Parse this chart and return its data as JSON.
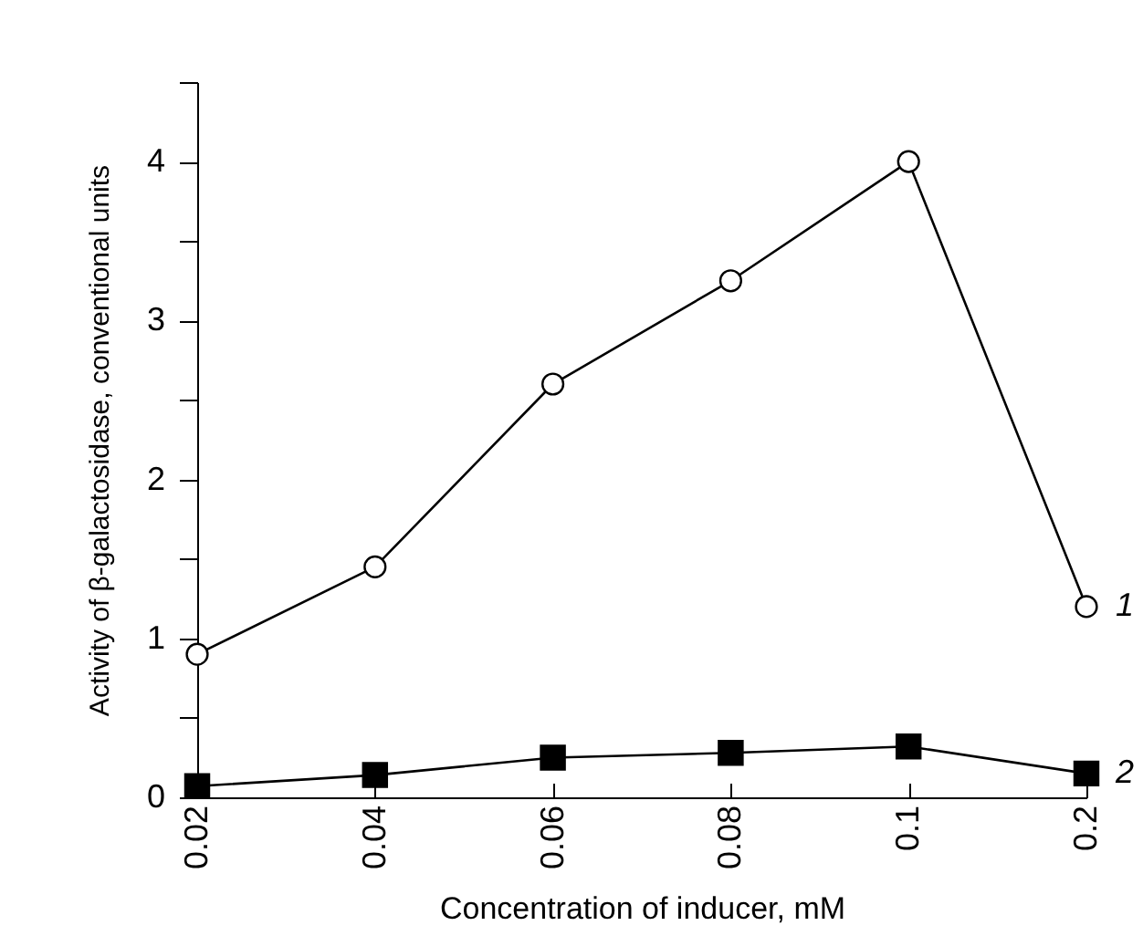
{
  "chart_data": {
    "type": "line",
    "xlabel": "Concentration of inducer, mM",
    "ylabel": "Activity of β-galactosidase, conventional units",
    "categories": [
      "0.02",
      "0.04",
      "0.06",
      "0.08",
      "0.1",
      "0.2"
    ],
    "series": [
      {
        "name": "1",
        "color": "#000000",
        "marker": "circle",
        "values": [
          0.9,
          1.45,
          2.6,
          3.25,
          4.0,
          1.2
        ]
      },
      {
        "name": "2",
        "color": "#000000",
        "marker": "square",
        "values": [
          0.07,
          0.14,
          0.25,
          0.28,
          0.32,
          0.15
        ]
      }
    ],
    "ylim": [
      0,
      4.5
    ],
    "yticks": [
      0,
      {
        "value": 0.5,
        "label": null
      },
      1,
      {
        "value": 1.5,
        "label": null
      },
      2,
      {
        "value": 2.5,
        "label": null
      },
      3,
      {
        "value": 3.5,
        "label": null
      },
      4,
      {
        "value": 4.5,
        "label": null
      }
    ],
    "grid": false,
    "line_style": "solid"
  }
}
